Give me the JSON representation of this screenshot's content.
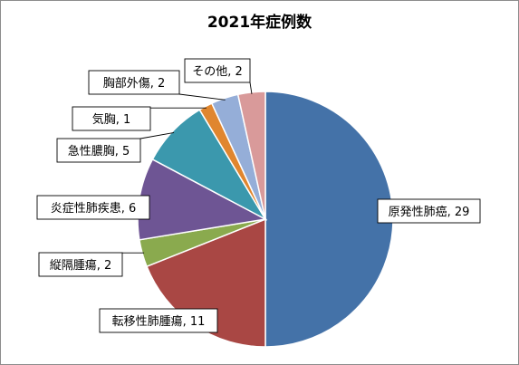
{
  "chart_data": {
    "type": "pie",
    "title": "2021年症例数",
    "start_angle_deg": 0,
    "direction": "clockwise",
    "slices": [
      {
        "label": "原発性肺癌",
        "value": 29,
        "color": "#4472a8"
      },
      {
        "label": "転移性肺腫瘍",
        "value": 11,
        "color": "#a94744"
      },
      {
        "label": "縦隔腫瘍",
        "value": 2,
        "color": "#8aaa4e"
      },
      {
        "label": "炎症性肺疾患",
        "value": 6,
        "color": "#6e5594"
      },
      {
        "label": "急性膿胸",
        "value": 5,
        "color": "#3b98ad"
      },
      {
        "label": "気胸",
        "value": 1,
        "color": "#e0862f"
      },
      {
        "label": "胸部外傷",
        "value": 2,
        "color": "#95aed8"
      },
      {
        "label": "その他",
        "value": 2,
        "color": "#d99a9a"
      }
    ]
  }
}
